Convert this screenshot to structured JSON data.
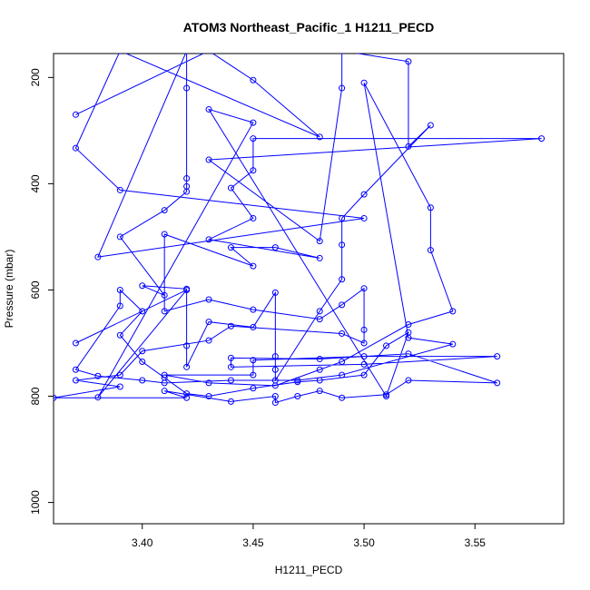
{
  "chart_data": {
    "type": "line",
    "title": "ATOM3 Northeast_Pacific_1 H1211_PECD",
    "xlabel": "H1211_PECD",
    "ylabel": "Pressure (mbar)",
    "xlim": [
      3.36,
      3.59
    ],
    "ylim": [
      1040,
      155
    ],
    "y_inverted": true,
    "xticks": [
      3.4,
      3.45,
      3.5,
      3.55
    ],
    "xtick_labels": [
      "3.40",
      "3.45",
      "3.50",
      "3.55"
    ],
    "yticks": [
      200,
      400,
      600,
      800,
      1000
    ],
    "ytick_labels": [
      "200",
      "400",
      "600",
      "800",
      "1000"
    ],
    "grid": false,
    "series": [
      {
        "color": "#0000ff",
        "marker": "open-circle",
        "points": [
          [
            3.37,
            270
          ],
          [
            3.43,
            150
          ],
          [
            3.45,
            205
          ],
          [
            3.48,
            312
          ],
          [
            3.39,
            150
          ],
          [
            3.37,
            333
          ],
          [
            3.39,
            412
          ],
          [
            3.5,
            465
          ],
          [
            3.38,
            538
          ],
          [
            3.42,
            150
          ],
          [
            3.42,
            220
          ],
          [
            3.42,
            390
          ],
          [
            3.42,
            405
          ],
          [
            3.42,
            415
          ],
          [
            3.41,
            450
          ],
          [
            3.39,
            500
          ],
          [
            3.41,
            610
          ],
          [
            3.4,
            592
          ],
          [
            3.42,
            598
          ],
          [
            3.42,
            705
          ],
          [
            3.42,
            745
          ],
          [
            3.43,
            660
          ],
          [
            3.45,
            670
          ],
          [
            3.46,
            605
          ],
          [
            3.46,
            725
          ],
          [
            3.46,
            750
          ],
          [
            3.46,
            770
          ],
          [
            3.48,
            640
          ],
          [
            3.49,
            580
          ],
          [
            3.49,
            515
          ],
          [
            3.49,
            465
          ],
          [
            3.5,
            420
          ],
          [
            3.53,
            290
          ],
          [
            3.52,
            330
          ],
          [
            3.52,
            170
          ],
          [
            3.49,
            150
          ],
          [
            3.49,
            220
          ],
          [
            3.48,
            508
          ],
          [
            3.43,
            355
          ],
          [
            3.58,
            315
          ],
          [
            3.45,
            315
          ],
          [
            3.45,
            375
          ],
          [
            3.44,
            408
          ],
          [
            3.45,
            465
          ],
          [
            3.43,
            505
          ],
          [
            3.48,
            540
          ],
          [
            3.46,
            520
          ],
          [
            3.44,
            520
          ],
          [
            3.45,
            555
          ],
          [
            3.41,
            495
          ],
          [
            3.41,
            640
          ],
          [
            3.43,
            618
          ],
          [
            3.45,
            637
          ],
          [
            3.48,
            655
          ],
          [
            3.49,
            628
          ],
          [
            3.5,
            597
          ],
          [
            3.5,
            675
          ],
          [
            3.5,
            700
          ],
          [
            3.49,
            682
          ],
          [
            3.44,
            668
          ],
          [
            3.43,
            695
          ],
          [
            3.4,
            715
          ],
          [
            3.39,
            760
          ],
          [
            3.37,
            770
          ],
          [
            3.39,
            782
          ],
          [
            3.36,
            803
          ],
          [
            3.42,
            803
          ],
          [
            3.41,
            790
          ],
          [
            3.44,
            810
          ],
          [
            3.46,
            800
          ],
          [
            3.46,
            812
          ],
          [
            3.47,
            800
          ],
          [
            3.48,
            790
          ],
          [
            3.49,
            803
          ],
          [
            3.51,
            797
          ],
          [
            3.52,
            770
          ],
          [
            3.56,
            775
          ],
          [
            3.52,
            720
          ],
          [
            3.48,
            730
          ],
          [
            3.44,
            728
          ],
          [
            3.44,
            745
          ],
          [
            3.5,
            740
          ],
          [
            3.56,
            725
          ],
          [
            3.5,
            725
          ],
          [
            3.45,
            732
          ],
          [
            3.45,
            760
          ],
          [
            3.41,
            760
          ],
          [
            3.43,
            775
          ],
          [
            3.46,
            780
          ],
          [
            3.48,
            750
          ],
          [
            3.49,
            735
          ],
          [
            3.52,
            665
          ],
          [
            3.54,
            640
          ],
          [
            3.53,
            525
          ],
          [
            3.53,
            445
          ],
          [
            3.5,
            210
          ],
          [
            3.52,
            690
          ],
          [
            3.54,
            702
          ],
          [
            3.49,
            760
          ],
          [
            3.47,
            770
          ],
          [
            3.44,
            770
          ],
          [
            3.41,
            775
          ],
          [
            3.4,
            770
          ],
          [
            3.38,
            762
          ],
          [
            3.37,
            750
          ],
          [
            3.39,
            630
          ],
          [
            3.39,
            600
          ],
          [
            3.4,
            640
          ],
          [
            3.39,
            685
          ],
          [
            3.4,
            735
          ],
          [
            3.41,
            765
          ],
          [
            3.42,
            795
          ],
          [
            3.43,
            800
          ],
          [
            3.45,
            785
          ],
          [
            3.47,
            773
          ],
          [
            3.48,
            770
          ],
          [
            3.5,
            760
          ],
          [
            3.51,
            705
          ],
          [
            3.52,
            680
          ],
          [
            3.51,
            800
          ],
          [
            3.43,
            260
          ],
          [
            3.45,
            285
          ],
          [
            3.38,
            802
          ],
          [
            3.42,
            600
          ],
          [
            3.37,
            700
          ]
        ]
      }
    ]
  }
}
